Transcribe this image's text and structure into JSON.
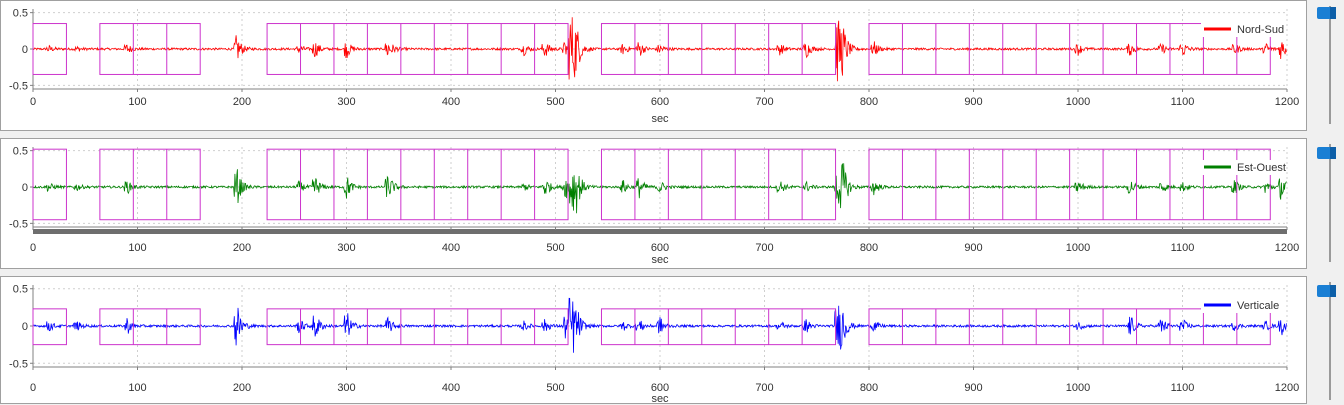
{
  "chart_data": [
    {
      "type": "line",
      "xlabel": "sec",
      "xlim": [
        0,
        1200
      ],
      "ylim": [
        -0.55,
        0.55
      ],
      "x_ticks": [
        "0",
        "100",
        "200",
        "300",
        "400",
        "500",
        "600",
        "700",
        "800",
        "900",
        "1000",
        "1100",
        "1200"
      ],
      "y_ticks": [
        "0.5",
        "0",
        "-0.5"
      ],
      "grid": true,
      "legend": "top-right",
      "series": [
        {
          "name": "Nord-Sud",
          "color": "#ff0000"
        }
      ],
      "windows_y": [
        -0.35,
        0.35
      ]
    },
    {
      "type": "line",
      "xlabel": "sec",
      "xlim": [
        0,
        1200
      ],
      "ylim": [
        -0.55,
        0.55
      ],
      "x_ticks": [
        "0",
        "100",
        "200",
        "300",
        "400",
        "500",
        "600",
        "700",
        "800",
        "900",
        "1000",
        "1100",
        "1200"
      ],
      "y_ticks": [
        "0.5",
        "0",
        "-0.5"
      ],
      "grid": true,
      "legend": "top-right",
      "series": [
        {
          "name": "Est-Ouest",
          "color": "#008000"
        }
      ],
      "windows_y": [
        -0.45,
        0.52
      ]
    },
    {
      "type": "line",
      "xlabel": "sec",
      "xlim": [
        0,
        1200
      ],
      "ylim": [
        -0.55,
        0.55
      ],
      "x_ticks": [
        "0",
        "100",
        "200",
        "300",
        "400",
        "500",
        "600",
        "700",
        "800",
        "900",
        "1000",
        "1100",
        "1200"
      ],
      "y_ticks": [
        "0.5",
        "0",
        "-0.5"
      ],
      "grid": true,
      "legend": "top-right",
      "series": [
        {
          "name": "Verticale",
          "color": "#0000ff"
        }
      ],
      "windows_y": [
        -0.25,
        0.23
      ]
    }
  ],
  "window_boundaries": [
    [
      0,
      32
    ],
    [
      64,
      96,
      128,
      160
    ],
    [
      224,
      256,
      288,
      320,
      352,
      384,
      416,
      448,
      480,
      512
    ],
    [
      544,
      576,
      608,
      640,
      672,
      704,
      736,
      768
    ],
    [
      800,
      832,
      864,
      896,
      928,
      960,
      992,
      1024,
      1056,
      1088,
      1120,
      1152,
      1184
    ]
  ],
  "window_color": "#cc33cc",
  "events": [
    [
      15,
      0.08
    ],
    [
      42,
      0.06
    ],
    [
      90,
      0.12
    ],
    [
      195,
      0.35
    ],
    [
      255,
      0.1
    ],
    [
      270,
      0.2
    ],
    [
      300,
      0.22
    ],
    [
      340,
      0.2
    ],
    [
      470,
      0.08
    ],
    [
      490,
      0.15
    ],
    [
      510,
      0.2
    ],
    [
      515,
      0.6
    ],
    [
      520,
      0.25
    ],
    [
      565,
      0.1
    ],
    [
      580,
      0.15
    ],
    [
      600,
      0.12
    ],
    [
      715,
      0.1
    ],
    [
      740,
      0.12
    ],
    [
      770,
      0.5
    ],
    [
      775,
      0.3
    ],
    [
      805,
      0.12
    ],
    [
      1000,
      0.1
    ],
    [
      1050,
      0.15
    ],
    [
      1080,
      0.12
    ],
    [
      1100,
      0.12
    ],
    [
      1150,
      0.1
    ],
    [
      1180,
      0.1
    ],
    [
      1195,
      0.2
    ]
  ]
}
